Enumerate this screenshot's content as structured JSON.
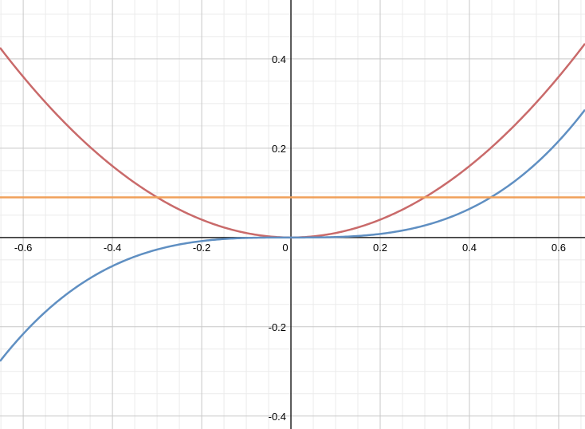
{
  "chart_data": {
    "type": "line",
    "title": "",
    "xlabel": "",
    "ylabel": "",
    "xlim": [
      -0.652,
      0.659
    ],
    "ylim": [
      -0.429,
      0.532
    ],
    "grid": true,
    "x_ticks": [
      -0.6,
      -0.4,
      -0.2,
      0,
      0.2,
      0.4,
      0.6
    ],
    "x_tick_labels": [
      "-0.6",
      "-0.4",
      "-0.2",
      "0",
      "0.2",
      "0.4",
      "0.6"
    ],
    "y_ticks": [
      -0.4,
      -0.2,
      0.2,
      0.4
    ],
    "y_tick_labels": [
      "-0.4",
      "-0.2",
      "0.2",
      "0.4"
    ],
    "series": [
      {
        "function": "x^2",
        "color": "#c96a6a"
      },
      {
        "function": "x^3",
        "color": "#5f8fc2"
      },
      {
        "function": "0.09",
        "color": "#f0a05a"
      }
    ]
  }
}
